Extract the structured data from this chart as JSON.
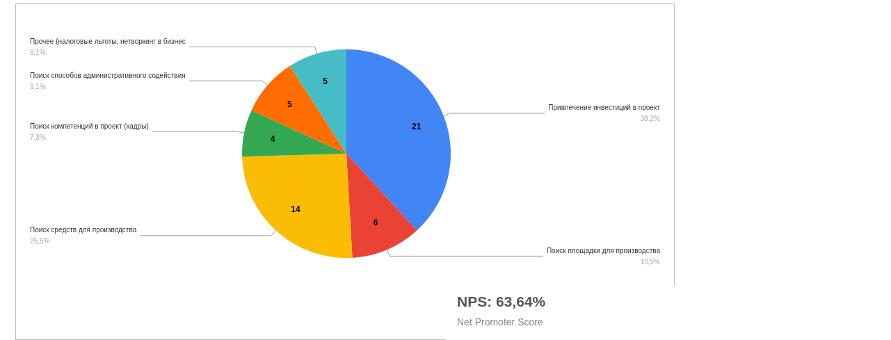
{
  "chart_data": [
    {
      "type": "pie",
      "categories": [
        "Привлечение инвестиций в проект",
        "Поиск площадки для производства",
        "Поиск средств для производства",
        "Поиск компетенций в проект (кадры)",
        "Поиск способов административного содействия",
        "Прочее (налоговые льготы, нетворкинг в бизнес"
      ],
      "values": [
        21,
        6,
        14,
        4,
        5,
        5
      ],
      "colors": [
        "#4285f4",
        "#ea4335",
        "#fbbc04",
        "#34a853",
        "#ff6d01",
        "#46bdc6"
      ],
      "annotations": [
        {
          "text": "38,2%",
          "x": "Привлечение инвестиций в проект"
        },
        {
          "text": "10,9%",
          "x": "Поиск площадки для производства"
        },
        {
          "text": "25,5%",
          "x": "Поиск средств для производства"
        },
        {
          "text": "7,3%",
          "x": "Поиск компетенций в проект (кадры)"
        },
        {
          "text": "9,1%",
          "x": "Поиск способов административного содействия"
        },
        {
          "text": "9,1%",
          "x": "Прочее (налоговые льготы, нетворкинг в бизнес"
        }
      ],
      "data_labels": true,
      "legend": false
    },
    {
      "type": "other",
      "title": "NPS: 63,64%",
      "subtitle": "Net Promoter Score"
    }
  ]
}
